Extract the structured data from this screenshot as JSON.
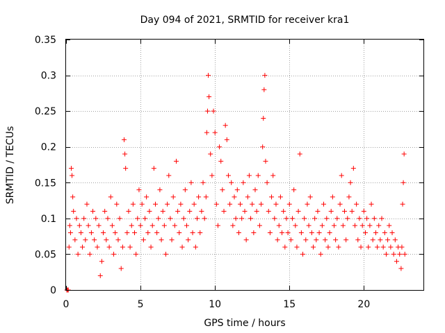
{
  "chart_data": {
    "type": "scatter",
    "title": "Day 094 of 2021, SRMTID for receiver kra1",
    "xlabel": "GPS time / hours",
    "ylabel": "SRMTID / TECUs",
    "xlim": [
      0,
      24
    ],
    "ylim": [
      0,
      0.35
    ],
    "x_ticks": [
      0,
      5,
      10,
      15,
      20
    ],
    "x_tick_labels": [
      "0",
      "5",
      "10",
      "15",
      "20"
    ],
    "y_ticks": [
      0,
      0.05,
      0.1,
      0.15,
      0.2,
      0.25,
      0.3,
      0.35
    ],
    "y_tick_labels": [
      "0",
      "0.05",
      "0.1",
      "0.15",
      "0.2",
      "0.25",
      "0.3",
      "0.35"
    ],
    "grid": true,
    "marker": "+",
    "color": "#ff0000",
    "series": [
      {
        "name": "SRMTID",
        "points": [
          [
            0.05,
            0.0
          ],
          [
            0.1,
            0.0
          ],
          [
            0.15,
            0.0
          ],
          [
            0.2,
            0.06
          ],
          [
            0.25,
            0.09
          ],
          [
            0.3,
            0.08
          ],
          [
            0.35,
            0.17
          ],
          [
            0.4,
            0.16
          ],
          [
            0.45,
            0.13
          ],
          [
            0.5,
            0.11
          ],
          [
            0.6,
            0.07
          ],
          [
            0.7,
            0.1
          ],
          [
            0.8,
            0.05
          ],
          [
            0.9,
            0.09
          ],
          [
            1.0,
            0.08
          ],
          [
            1.1,
            0.06
          ],
          [
            1.2,
            0.1
          ],
          [
            1.3,
            0.07
          ],
          [
            1.4,
            0.12
          ],
          [
            1.5,
            0.09
          ],
          [
            1.6,
            0.05
          ],
          [
            1.7,
            0.08
          ],
          [
            1.8,
            0.11
          ],
          [
            1.9,
            0.07
          ],
          [
            2.0,
            0.1
          ],
          [
            2.1,
            0.06
          ],
          [
            2.2,
            0.09
          ],
          [
            2.3,
            0.02
          ],
          [
            2.4,
            0.04
          ],
          [
            2.5,
            0.08
          ],
          [
            2.6,
            0.11
          ],
          [
            2.7,
            0.07
          ],
          [
            2.8,
            0.1
          ],
          [
            2.9,
            0.06
          ],
          [
            3.0,
            0.13
          ],
          [
            3.1,
            0.09
          ],
          [
            3.2,
            0.05
          ],
          [
            3.3,
            0.08
          ],
          [
            3.4,
            0.12
          ],
          [
            3.5,
            0.07
          ],
          [
            3.6,
            0.1
          ],
          [
            3.7,
            0.03
          ],
          [
            3.8,
            0.06
          ],
          [
            3.9,
            0.21
          ],
          [
            3.95,
            0.19
          ],
          [
            4.0,
            0.17
          ],
          [
            4.1,
            0.08
          ],
          [
            4.2,
            0.11
          ],
          [
            4.3,
            0.06
          ],
          [
            4.4,
            0.09
          ],
          [
            4.5,
            0.12
          ],
          [
            4.6,
            0.08
          ],
          [
            4.7,
            0.05
          ],
          [
            4.8,
            0.1
          ],
          [
            4.9,
            0.14
          ],
          [
            5.0,
            0.09
          ],
          [
            5.1,
            0.12
          ],
          [
            5.2,
            0.07
          ],
          [
            5.3,
            0.1
          ],
          [
            5.4,
            0.13
          ],
          [
            5.5,
            0.08
          ],
          [
            5.6,
            0.11
          ],
          [
            5.7,
            0.06
          ],
          [
            5.8,
            0.09
          ],
          [
            5.9,
            0.17
          ],
          [
            6.0,
            0.12
          ],
          [
            6.1,
            0.08
          ],
          [
            6.2,
            0.1
          ],
          [
            6.3,
            0.14
          ],
          [
            6.4,
            0.07
          ],
          [
            6.5,
            0.11
          ],
          [
            6.6,
            0.09
          ],
          [
            6.7,
            0.05
          ],
          [
            6.8,
            0.12
          ],
          [
            6.9,
            0.16
          ],
          [
            7.0,
            0.1
          ],
          [
            7.1,
            0.07
          ],
          [
            7.2,
            0.13
          ],
          [
            7.3,
            0.09
          ],
          [
            7.4,
            0.18
          ],
          [
            7.5,
            0.11
          ],
          [
            7.6,
            0.08
          ],
          [
            7.7,
            0.12
          ],
          [
            7.8,
            0.06
          ],
          [
            7.9,
            0.1
          ],
          [
            8.0,
            0.14
          ],
          [
            8.1,
            0.09
          ],
          [
            8.2,
            0.07
          ],
          [
            8.3,
            0.11
          ],
          [
            8.4,
            0.15
          ],
          [
            8.5,
            0.08
          ],
          [
            8.6,
            0.12
          ],
          [
            8.7,
            0.06
          ],
          [
            8.8,
            0.1
          ],
          [
            8.9,
            0.13
          ],
          [
            9.0,
            0.08
          ],
          [
            9.1,
            0.11
          ],
          [
            9.2,
            0.15
          ],
          [
            9.3,
            0.1
          ],
          [
            9.4,
            0.13
          ],
          [
            9.45,
            0.22
          ],
          [
            9.5,
            0.25
          ],
          [
            9.55,
            0.3
          ],
          [
            9.6,
            0.27
          ],
          [
            9.7,
            0.19
          ],
          [
            9.8,
            0.16
          ],
          [
            9.9,
            0.25
          ],
          [
            10.0,
            0.22
          ],
          [
            10.1,
            0.12
          ],
          [
            10.2,
            0.09
          ],
          [
            10.3,
            0.2
          ],
          [
            10.4,
            0.18
          ],
          [
            10.5,
            0.14
          ],
          [
            10.6,
            0.11
          ],
          [
            10.7,
            0.23
          ],
          [
            10.8,
            0.21
          ],
          [
            10.9,
            0.16
          ],
          [
            11.0,
            0.12
          ],
          [
            11.1,
            0.15
          ],
          [
            11.2,
            0.09
          ],
          [
            11.3,
            0.13
          ],
          [
            11.4,
            0.1
          ],
          [
            11.5,
            0.14
          ],
          [
            11.6,
            0.08
          ],
          [
            11.7,
            0.12
          ],
          [
            11.8,
            0.1
          ],
          [
            11.9,
            0.15
          ],
          [
            12.0,
            0.11
          ],
          [
            12.1,
            0.07
          ],
          [
            12.2,
            0.13
          ],
          [
            12.3,
            0.16
          ],
          [
            12.4,
            0.1
          ],
          [
            12.5,
            0.12
          ],
          [
            12.6,
            0.08
          ],
          [
            12.7,
            0.14
          ],
          [
            12.8,
            0.11
          ],
          [
            12.9,
            0.16
          ],
          [
            13.0,
            0.09
          ],
          [
            13.1,
            0.12
          ],
          [
            13.2,
            0.2
          ],
          [
            13.25,
            0.24
          ],
          [
            13.3,
            0.28
          ],
          [
            13.35,
            0.3
          ],
          [
            13.4,
            0.18
          ],
          [
            13.5,
            0.15
          ],
          [
            13.6,
            0.11
          ],
          [
            13.7,
            0.08
          ],
          [
            13.8,
            0.13
          ],
          [
            13.9,
            0.16
          ],
          [
            14.0,
            0.1
          ],
          [
            14.1,
            0.12
          ],
          [
            14.2,
            0.07
          ],
          [
            14.3,
            0.09
          ],
          [
            14.4,
            0.13
          ],
          [
            14.5,
            0.08
          ],
          [
            14.6,
            0.11
          ],
          [
            14.7,
            0.06
          ],
          [
            14.8,
            0.1
          ],
          [
            14.9,
            0.08
          ],
          [
            15.0,
            0.12
          ],
          [
            15.1,
            0.07
          ],
          [
            15.2,
            0.1
          ],
          [
            15.3,
            0.14
          ],
          [
            15.4,
            0.09
          ],
          [
            15.5,
            0.06
          ],
          [
            15.6,
            0.11
          ],
          [
            15.7,
            0.19
          ],
          [
            15.8,
            0.08
          ],
          [
            15.9,
            0.05
          ],
          [
            16.0,
            0.1
          ],
          [
            16.1,
            0.07
          ],
          [
            16.2,
            0.12
          ],
          [
            16.3,
            0.09
          ],
          [
            16.4,
            0.13
          ],
          [
            16.5,
            0.08
          ],
          [
            16.6,
            0.06
          ],
          [
            16.7,
            0.1
          ],
          [
            16.8,
            0.07
          ],
          [
            16.9,
            0.11
          ],
          [
            17.0,
            0.08
          ],
          [
            17.1,
            0.05
          ],
          [
            17.2,
            0.09
          ],
          [
            17.3,
            0.12
          ],
          [
            17.4,
            0.07
          ],
          [
            17.5,
            0.1
          ],
          [
            17.6,
            0.06
          ],
          [
            17.7,
            0.08
          ],
          [
            17.8,
            0.11
          ],
          [
            17.9,
            0.13
          ],
          [
            18.0,
            0.09
          ],
          [
            18.1,
            0.07
          ],
          [
            18.2,
            0.1
          ],
          [
            18.3,
            0.06
          ],
          [
            18.4,
            0.12
          ],
          [
            18.5,
            0.16
          ],
          [
            18.6,
            0.09
          ],
          [
            18.7,
            0.11
          ],
          [
            18.8,
            0.07
          ],
          [
            18.9,
            0.1
          ],
          [
            19.0,
            0.13
          ],
          [
            19.1,
            0.15
          ],
          [
            19.2,
            0.11
          ],
          [
            19.3,
            0.17
          ],
          [
            19.4,
            0.09
          ],
          [
            19.5,
            0.12
          ],
          [
            19.6,
            0.07
          ],
          [
            19.7,
            0.1
          ],
          [
            19.8,
            0.06
          ],
          [
            19.9,
            0.09
          ],
          [
            20.0,
            0.11
          ],
          [
            20.1,
            0.08
          ],
          [
            20.2,
            0.1
          ],
          [
            20.3,
            0.06
          ],
          [
            20.4,
            0.09
          ],
          [
            20.5,
            0.12
          ],
          [
            20.6,
            0.07
          ],
          [
            20.7,
            0.1
          ],
          [
            20.8,
            0.08
          ],
          [
            20.9,
            0.06
          ],
          [
            21.0,
            0.09
          ],
          [
            21.1,
            0.07
          ],
          [
            21.2,
            0.1
          ],
          [
            21.3,
            0.06
          ],
          [
            21.4,
            0.08
          ],
          [
            21.5,
            0.05
          ],
          [
            21.6,
            0.07
          ],
          [
            21.7,
            0.09
          ],
          [
            21.8,
            0.06
          ],
          [
            21.9,
            0.08
          ],
          [
            22.0,
            0.05
          ],
          [
            22.1,
            0.07
          ],
          [
            22.2,
            0.04
          ],
          [
            22.3,
            0.06
          ],
          [
            22.4,
            0.05
          ],
          [
            22.5,
            0.03
          ],
          [
            22.55,
            0.06
          ],
          [
            22.6,
            0.12
          ],
          [
            22.65,
            0.15
          ],
          [
            22.7,
            0.19
          ],
          [
            22.75,
            0.05
          ]
        ]
      }
    ]
  }
}
